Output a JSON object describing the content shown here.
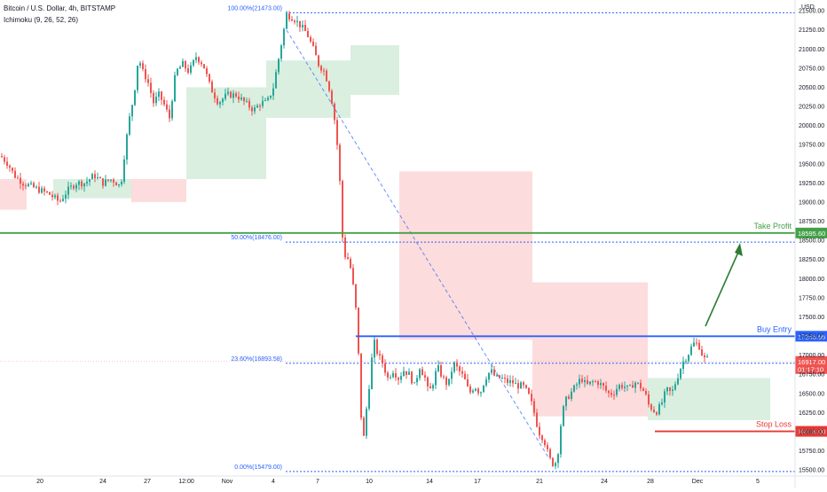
{
  "header": {
    "symbol": "Bitcoin / U.S. Dollar, 4h, BITSTAMP",
    "indicator": "Ichimoku (9, 26, 52, 26)",
    "currency": "USD"
  },
  "colors": {
    "bull": "#26a69a",
    "bear": "#ef5350",
    "fib": "#2962ff",
    "buy_entry": "#2962ff",
    "take_profit": "#43a047",
    "stop_loss": "#e53935",
    "cloud_bull": "#d4ecd9",
    "cloud_bear": "#fcd6d6"
  },
  "chart_data": {
    "type": "candlestick",
    "title": "Bitcoin / U.S. Dollar, 4h, BITSTAMP",
    "ylim": [
      15420,
      21640
    ],
    "y_ticks": [
      "21500.00",
      "21250.00",
      "21000.00",
      "20750.00",
      "20500.00",
      "20250.00",
      "20000.00",
      "19750.00",
      "19500.00",
      "19250.00",
      "19000.00",
      "18750.00",
      "18500.00",
      "18250.00",
      "18000.00",
      "17750.00",
      "17500.00",
      "17250.00",
      "17000.00",
      "16750.00",
      "16500.00",
      "16250.00",
      "16000.00",
      "15750.00",
      "15500.00"
    ],
    "x_ticks": [
      "20",
      "24",
      "27",
      "12:00",
      "Nov",
      "4",
      "7",
      "10",
      "14",
      "17",
      "21",
      "24",
      "28",
      "Dec",
      "5"
    ],
    "fib_levels": [
      {
        "label": "100.00%(21473.00)",
        "value": 21473
      },
      {
        "label": "50.00%(18476.00)",
        "value": 18476
      },
      {
        "label": "23.60%(16893.58)",
        "value": 16893.58
      },
      {
        "label": "0.00%(15479.00)",
        "value": 15479
      }
    ],
    "annotations": {
      "take_profit": {
        "label": "Take Profit",
        "price_label": "18595.60",
        "value": 18595.6
      },
      "buy_entry": {
        "label": "Buy Entry",
        "price_label": "17246.66",
        "value": 17246.66
      },
      "stop_loss": {
        "label": "Stop Loss",
        "price_label": "16004.00",
        "value": 16004
      },
      "current_price": {
        "price_label": "16917.00",
        "countdown": "01:17:10",
        "value": 16917
      }
    },
    "price_anchors": [
      [
        0,
        19600
      ],
      [
        8,
        19500
      ],
      [
        15,
        19350
      ],
      [
        25,
        19250
      ],
      [
        35,
        19200
      ],
      [
        45,
        19150
      ],
      [
        55,
        19100
      ],
      [
        66,
        19000
      ],
      [
        75,
        19150
      ],
      [
        85,
        19250
      ],
      [
        95,
        19250
      ],
      [
        105,
        19350
      ],
      [
        115,
        19250
      ],
      [
        125,
        19300
      ],
      [
        135,
        19200
      ],
      [
        140,
        19700
      ],
      [
        145,
        20100
      ],
      [
        150,
        20400
      ],
      [
        155,
        20900
      ],
      [
        160,
        20700
      ],
      [
        165,
        20600
      ],
      [
        172,
        20300
      ],
      [
        178,
        20400
      ],
      [
        183,
        20300
      ],
      [
        190,
        20100
      ],
      [
        197,
        20700
      ],
      [
        205,
        20800
      ],
      [
        212,
        20700
      ],
      [
        220,
        20900
      ],
      [
        228,
        20800
      ],
      [
        236,
        20500
      ],
      [
        245,
        20300
      ],
      [
        255,
        20400
      ],
      [
        265,
        20400
      ],
      [
        275,
        20300
      ],
      [
        285,
        20200
      ],
      [
        293,
        20300
      ],
      [
        300,
        20300
      ],
      [
        307,
        20500
      ],
      [
        315,
        21000
      ],
      [
        322,
        21450
      ],
      [
        330,
        21400
      ],
      [
        338,
        21300
      ],
      [
        345,
        21200
      ],
      [
        352,
        21000
      ],
      [
        358,
        20800
      ],
      [
        365,
        20700
      ],
      [
        372,
        20400
      ],
      [
        377,
        20000
      ],
      [
        381,
        19500
      ],
      [
        386,
        18300
      ],
      [
        390,
        18300
      ],
      [
        395,
        18100
      ],
      [
        400,
        17600
      ],
      [
        403,
        17000
      ],
      [
        405,
        16400
      ],
      [
        408,
        15800
      ],
      [
        412,
        16300
      ],
      [
        416,
        16700
      ],
      [
        420,
        17200
      ],
      [
        425,
        17000
      ],
      [
        430,
        16900
      ],
      [
        436,
        16700
      ],
      [
        442,
        16800
      ],
      [
        448,
        16700
      ],
      [
        454,
        16800
      ],
      [
        460,
        16750
      ],
      [
        466,
        16600
      ],
      [
        472,
        16850
      ],
      [
        478,
        16700
      ],
      [
        482,
        16500
      ],
      [
        486,
        16600
      ],
      [
        492,
        16850
      ],
      [
        498,
        16700
      ],
      [
        504,
        16600
      ],
      [
        510,
        16900
      ],
      [
        516,
        16800
      ],
      [
        522,
        16700
      ],
      [
        528,
        16500
      ],
      [
        534,
        16600
      ],
      [
        540,
        16500
      ],
      [
        546,
        16700
      ],
      [
        552,
        16800
      ],
      [
        558,
        16700
      ],
      [
        564,
        16700
      ],
      [
        570,
        16650
      ],
      [
        576,
        16650
      ],
      [
        582,
        16600
      ],
      [
        588,
        16600
      ],
      [
        594,
        16500
      ],
      [
        600,
        16300
      ],
      [
        606,
        16000
      ],
      [
        612,
        15900
      ],
      [
        618,
        15650
      ],
      [
        624,
        15550
      ],
      [
        628,
        15750
      ],
      [
        632,
        16200
      ],
      [
        636,
        16400
      ],
      [
        642,
        16500
      ],
      [
        648,
        16600
      ],
      [
        654,
        16700
      ],
      [
        660,
        16600
      ],
      [
        666,
        16650
      ],
      [
        672,
        16650
      ],
      [
        678,
        16600
      ],
      [
        684,
        16500
      ],
      [
        690,
        16500
      ],
      [
        696,
        16600
      ],
      [
        702,
        16600
      ],
      [
        708,
        16550
      ],
      [
        714,
        16650
      ],
      [
        720,
        16600
      ],
      [
        726,
        16500
      ],
      [
        730,
        16350
      ],
      [
        734,
        16300
      ],
      [
        738,
        16250
      ],
      [
        744,
        16350
      ],
      [
        750,
        16550
      ],
      [
        756,
        16500
      ],
      [
        762,
        16700
      ],
      [
        768,
        16900
      ],
      [
        774,
        17000
      ],
      [
        780,
        17150
      ],
      [
        786,
        17150
      ],
      [
        792,
        16950
      ],
      [
        797,
        16950
      ]
    ],
    "cloud": [
      {
        "from": 0,
        "to": 30,
        "top": 19300,
        "bottom": 18900,
        "color": "bear"
      },
      {
        "from": 60,
        "to": 148,
        "top": 19300,
        "bottom": 19050,
        "color": "bull"
      },
      {
        "from": 148,
        "to": 210,
        "top": 19300,
        "bottom": 19000,
        "color": "bear"
      },
      {
        "from": 210,
        "to": 300,
        "top": 20500,
        "bottom": 19300,
        "color": "bull"
      },
      {
        "from": 300,
        "to": 395,
        "top": 20850,
        "bottom": 20100,
        "color": "bull"
      },
      {
        "from": 395,
        "to": 450,
        "top": 21050,
        "bottom": 20400,
        "color": "bull"
      },
      {
        "from": 450,
        "to": 600,
        "top": 19400,
        "bottom": 17200,
        "color": "bear"
      },
      {
        "from": 600,
        "to": 730,
        "top": 17950,
        "bottom": 16200,
        "color": "bear"
      },
      {
        "from": 730,
        "to": 868,
        "top": 16700,
        "bottom": 16150,
        "color": "bull"
      }
    ]
  }
}
